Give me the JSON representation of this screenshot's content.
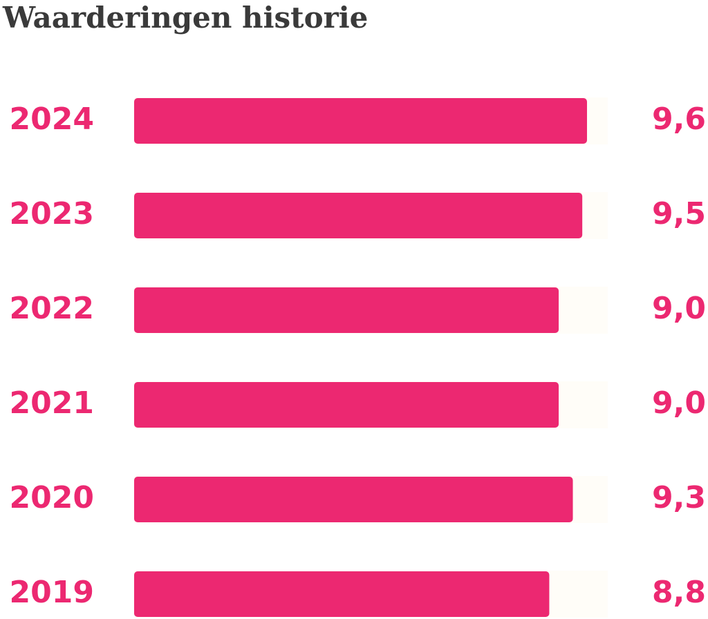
{
  "chart_data": {
    "type": "bar",
    "orientation": "horizontal",
    "title": "Waarderingen historie",
    "categories": [
      "2024",
      "2023",
      "2022",
      "2021",
      "2020",
      "2019"
    ],
    "values": [
      9.6,
      9.5,
      9.0,
      9.0,
      9.3,
      8.8
    ],
    "value_labels": [
      "9,6",
      "9,5",
      "9,0",
      "9,0",
      "9,3",
      "8,8"
    ],
    "color": "#ec2871"
  }
}
